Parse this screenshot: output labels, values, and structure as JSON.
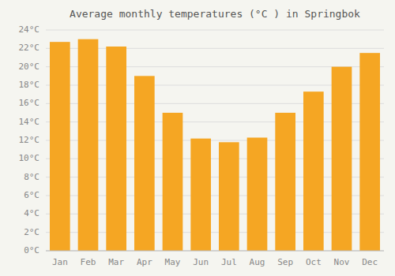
{
  "chart_data": {
    "type": "bar",
    "title": "Average monthly temperatures (°C ) in Springbok",
    "categories": [
      "Jan",
      "Feb",
      "Mar",
      "Apr",
      "May",
      "Jun",
      "Jul",
      "Aug",
      "Sep",
      "Oct",
      "Nov",
      "Dec"
    ],
    "values": [
      22.7,
      23.0,
      22.2,
      19.0,
      15.0,
      12.2,
      11.8,
      12.3,
      15.0,
      17.3,
      20.0,
      21.5
    ],
    "color": "#F5A623",
    "ylim": [
      0,
      24
    ],
    "yticks": [
      {
        "value": 0,
        "label": "0°C"
      },
      {
        "value": 2,
        "label": "2°C"
      },
      {
        "value": 4,
        "label": "4°C"
      },
      {
        "value": 6,
        "label": "6°C"
      },
      {
        "value": 8,
        "label": "8°C"
      },
      {
        "value": 10,
        "label": "10°C"
      },
      {
        "value": 12,
        "label": "12°C"
      },
      {
        "value": 14,
        "label": "14°C"
      },
      {
        "value": 16,
        "label": "16°C"
      },
      {
        "value": 18,
        "label": "18°C"
      },
      {
        "value": 20,
        "label": "20°C"
      },
      {
        "value": 22,
        "label": "22°C"
      },
      {
        "value": 24,
        "label": "24°C"
      }
    ],
    "grid": true
  }
}
